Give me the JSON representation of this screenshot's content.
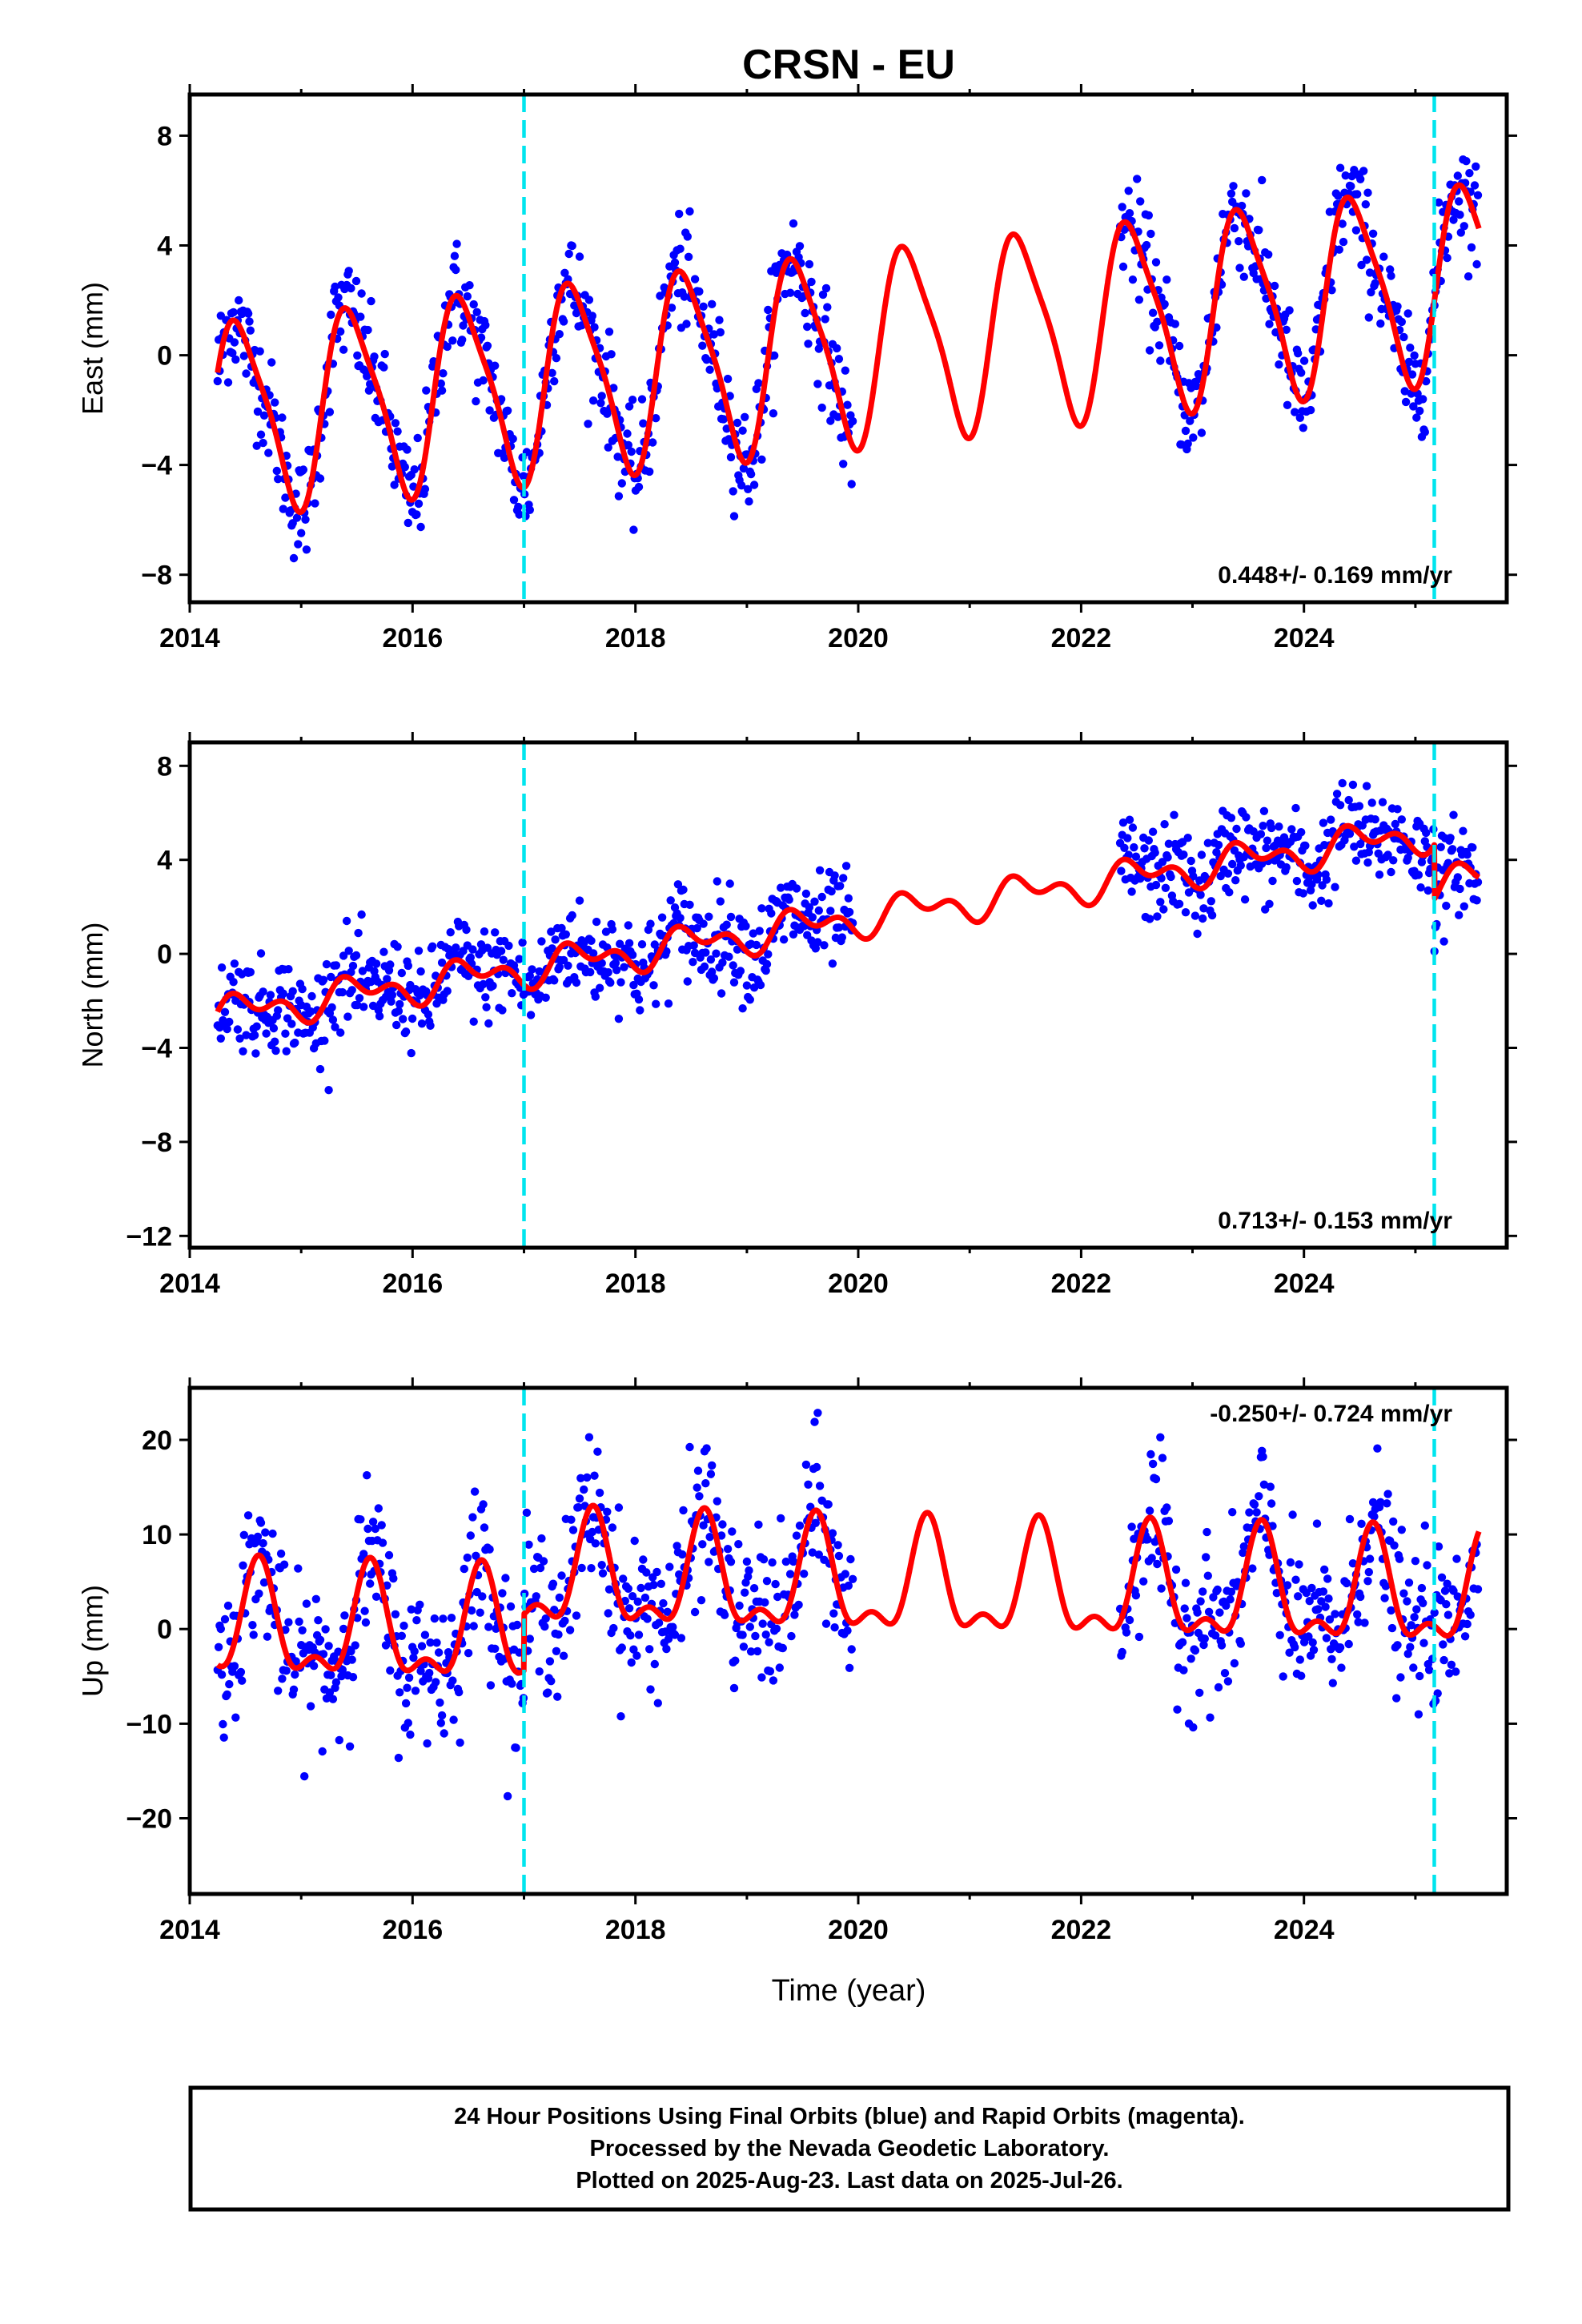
{
  "colors": {
    "data": "#0000ff",
    "model": "#ff0000",
    "event": "#00e5ee",
    "frame": "#000000"
  },
  "chart_data": {
    "type": "scatter",
    "title": "CRSN - EU",
    "xlabel": "Time (year)",
    "xlim": [
      2014.0,
      2025.82
    ],
    "x_ticks": [
      2014,
      2016,
      2018,
      2020,
      2022,
      2024
    ],
    "event_lines": [
      2017.0,
      2025.17
    ],
    "data_segments": [
      [
        2014.25,
        2019.95
      ],
      [
        2022.35,
        2025.57
      ]
    ],
    "panels": [
      {
        "name": "east",
        "ylabel": "East (mm)",
        "ylim": [
          -9.0,
          9.5
        ],
        "y_ticks": [
          -8,
          -4,
          0,
          4,
          8
        ],
        "rate_label": "0.448+/- 0.169 mm/yr",
        "model": {
          "offset": -2.25,
          "rate": 0.448,
          "annual_amp": 3.4,
          "annual_peak": 0.45,
          "semi_amp": 0.7,
          "semi_peak": 0.3,
          "steps": [
            {
              "t": 2017.0,
              "d": 0.0
            },
            {
              "t": 2025.17,
              "d": 0.0
            }
          ]
        },
        "noise_sd": 1.0
      },
      {
        "name": "north",
        "ylabel": "North (mm)",
        "ylim": [
          -12.5,
          9.0
        ],
        "y_ticks": [
          -12,
          -8,
          -4,
          0,
          4,
          8
        ],
        "rate_label": "0.713+/- 0.153 mm/yr",
        "model": {
          "offset": -2.6,
          "rate": 0.713,
          "annual_amp": 0.55,
          "annual_peak": 0.5,
          "semi_amp": 0.45,
          "semi_peak": 0.35,
          "steps": [
            {
              "t": 2017.0,
              "d": 0.0
            },
            {
              "t": 2025.17,
              "d": -2.3
            }
          ]
        },
        "noise_sd": 1.0
      },
      {
        "name": "up",
        "ylabel": "Up (mm)",
        "ylim": [
          -28.0,
          25.5
        ],
        "y_ticks": [
          -20,
          -10,
          0,
          10,
          20
        ],
        "rate_label": "-0.250+/- 0.724 mm/yr",
        "model": {
          "offset": 0.0,
          "rate": -0.25,
          "annual_amp": 5.3,
          "annual_peak": 0.62,
          "semi_amp": 2.6,
          "semi_peak": 0.12,
          "steps": [
            {
              "t": 2017.0,
              "d": 6.0
            },
            {
              "t": 2025.17,
              "d": 0.0
            }
          ]
        },
        "noise_sd": 4.0
      }
    ]
  },
  "footer": {
    "line1": "24 Hour Positions Using Final Orbits (blue) and Rapid Orbits (magenta).",
    "line2": "Processed by the Nevada Geodetic Laboratory.",
    "line3": "Plotted on 2025-Aug-23. Last data on 2025-Jul-26."
  }
}
